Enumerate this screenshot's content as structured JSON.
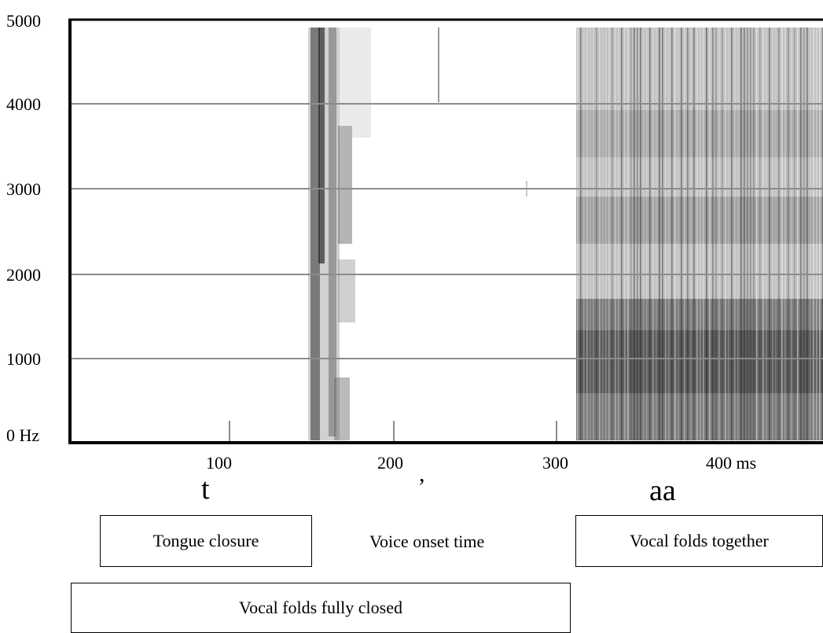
{
  "y_axis": {
    "ticks": [
      "5000",
      "4000",
      "3000",
      "2000",
      "1000",
      "0 Hz"
    ]
  },
  "x_axis": {
    "ticks": [
      "100",
      "200",
      "300",
      "400 ms"
    ]
  },
  "phonemes": {
    "t": "t",
    "apostrophe": ",",
    "aa": "aa"
  },
  "annotations": {
    "tongue_closure": "Tongue closure",
    "voice_onset_time": "Voice onset time",
    "vocal_folds_together": "Vocal folds together",
    "vocal_folds_fully_closed": "Vocal folds fully closed"
  },
  "spectrogram": {
    "colormap": "grayscale",
    "ink_color": "#000000",
    "grid_color": "#8c8c8c",
    "x_range_ms": [
      0,
      470
    ],
    "y_range_hz": [
      0,
      5000
    ],
    "burst_ms": [
      147,
      175
    ],
    "voicing_start_ms": 310
  }
}
